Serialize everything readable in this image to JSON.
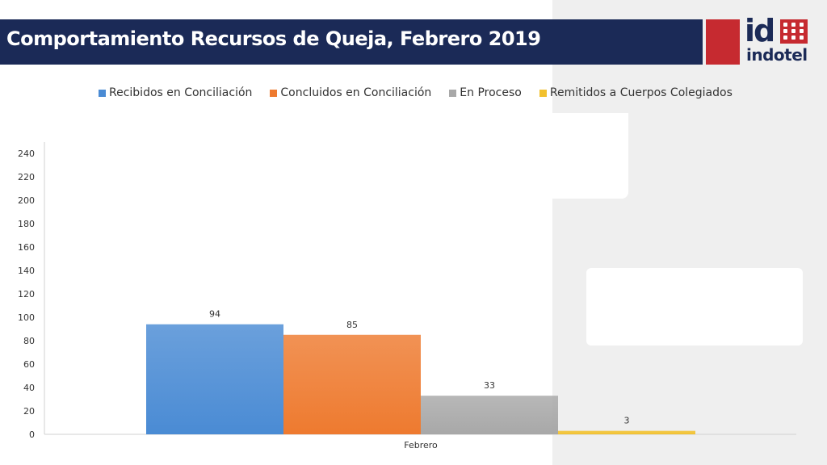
{
  "header": {
    "title": "Comportamiento Recursos de Queja, Febrero 2019"
  },
  "logo": {
    "id_text": "id",
    "name_text": "indotel"
  },
  "colors": {
    "title_bar": "#1b2a57",
    "brand_red": "#c62a30",
    "series": [
      "#4a8bd4",
      "#ee7a2f",
      "#a8a8a8",
      "#f2c12e"
    ]
  },
  "chart_data": {
    "type": "bar",
    "categories": [
      "Febrero"
    ],
    "series": [
      {
        "name": "Recibidos en Conciliación",
        "values": [
          94
        ]
      },
      {
        "name": "Concluidos en Conciliación",
        "values": [
          85
        ]
      },
      {
        "name": "En Proceso",
        "values": [
          33
        ]
      },
      {
        "name": "Remitidos a Cuerpos Colegiados",
        "values": [
          3
        ]
      }
    ],
    "ylim": [
      0,
      240
    ],
    "yticks": [
      0,
      20,
      40,
      60,
      80,
      100,
      120,
      140,
      160,
      180,
      200,
      220,
      240
    ],
    "legend_position": "top",
    "grid": false
  }
}
